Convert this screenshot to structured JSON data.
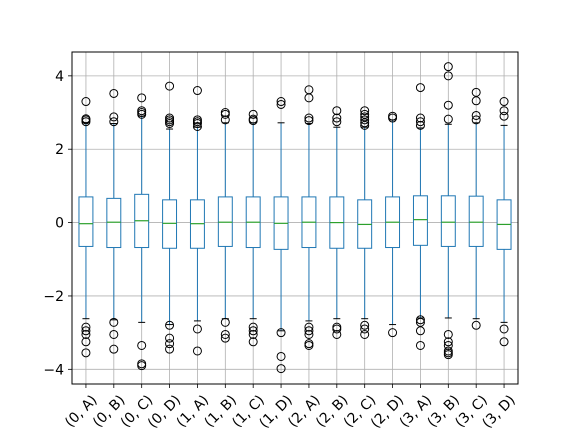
{
  "chart_data": {
    "type": "boxplot",
    "title": "",
    "xlabel": "",
    "ylabel": "",
    "ylim": [
      -4.4,
      4.65
    ],
    "yticks": [
      -4,
      -2,
      0,
      2,
      4
    ],
    "ytick_labels": [
      "−4",
      "−2",
      "0",
      "2",
      "4"
    ],
    "grid": true,
    "colors": {
      "box": "#1f77b4",
      "median": "#2ca02c",
      "grid": "#b0b0b0",
      "flier": "#000000"
    },
    "categories": [
      "(0, A)",
      "(0, B)",
      "(0, C)",
      "(0, D)",
      "(1, A)",
      "(1, B)",
      "(1, C)",
      "(1, D)",
      "(2, A)",
      "(2, B)",
      "(2, C)",
      "(2, D)",
      "(3, A)",
      "(3, B)",
      "(3, C)",
      "(3, D)"
    ],
    "boxes": [
      {
        "q1": -0.65,
        "median": -0.03,
        "q3": 0.7,
        "whisker_low": -2.62,
        "whisker_high": 2.72,
        "fliers": [
          2.75,
          2.8,
          2.83,
          3.3,
          -2.85,
          -2.95,
          -3.05,
          -3.25,
          -3.55
        ]
      },
      {
        "q1": -0.68,
        "median": 0.01,
        "q3": 0.66,
        "whisker_low": -2.65,
        "whisker_high": 2.7,
        "fliers": [
          2.75,
          2.88,
          3.52,
          -2.72,
          -3.05,
          -3.45
        ]
      },
      {
        "q1": -0.68,
        "median": 0.05,
        "q3": 0.77,
        "whisker_low": -2.72,
        "whisker_high": 2.9,
        "fliers": [
          2.95,
          3.0,
          3.05,
          3.4,
          -3.35,
          -3.85,
          -3.9
        ]
      },
      {
        "q1": -0.7,
        "median": -0.02,
        "q3": 0.62,
        "whisker_low": -2.78,
        "whisker_high": 2.55,
        "fliers": [
          2.7,
          2.75,
          2.8,
          2.85,
          3.72,
          -2.8,
          -3.15,
          -3.3,
          -3.45
        ]
      },
      {
        "q1": -0.7,
        "median": -0.03,
        "q3": 0.62,
        "whisker_low": -2.68,
        "whisker_high": 2.6,
        "fliers": [
          2.62,
          2.7,
          2.75,
          2.8,
          3.6,
          -2.9,
          -3.5
        ]
      },
      {
        "q1": -0.65,
        "median": 0.01,
        "q3": 0.7,
        "whisker_low": -2.62,
        "whisker_high": 2.72,
        "fliers": [
          2.8,
          2.95,
          3.0,
          -2.72,
          -3.05,
          -3.15
        ]
      },
      {
        "q1": -0.68,
        "median": 0.01,
        "q3": 0.7,
        "whisker_low": -2.62,
        "whisker_high": 2.72,
        "fliers": [
          2.78,
          2.82,
          2.95,
          -2.85,
          -2.95,
          -3.05,
          -3.25
        ]
      },
      {
        "q1": -0.73,
        "median": -0.02,
        "q3": 0.7,
        "whisker_low": -2.95,
        "whisker_high": 2.72,
        "fliers": [
          3.22,
          3.3,
          -3.0,
          -3.65,
          -3.98
        ]
      },
      {
        "q1": -0.68,
        "median": 0.01,
        "q3": 0.7,
        "whisker_low": -2.68,
        "whisker_high": 2.7,
        "fliers": [
          2.78,
          2.85,
          3.4,
          3.62,
          -2.85,
          -2.95,
          -3.05,
          -3.3,
          -3.35
        ]
      },
      {
        "q1": -0.7,
        "median": 0.0,
        "q3": 0.7,
        "whisker_low": -2.62,
        "whisker_high": 2.6,
        "fliers": [
          2.75,
          2.85,
          3.05,
          -2.85,
          -2.9,
          -3.05
        ]
      },
      {
        "q1": -0.7,
        "median": -0.05,
        "q3": 0.62,
        "whisker_low": -2.62,
        "whisker_high": 2.6,
        "fliers": [
          2.65,
          2.72,
          2.8,
          2.88,
          2.95,
          3.05,
          -2.8,
          -2.9,
          -3.05
        ]
      },
      {
        "q1": -0.68,
        "median": 0.01,
        "q3": 0.7,
        "whisker_low": -2.78,
        "whisker_high": 2.8,
        "fliers": [
          2.85,
          2.9,
          -3.0
        ]
      },
      {
        "q1": -0.62,
        "median": 0.08,
        "q3": 0.73,
        "whisker_low": -2.6,
        "whisker_high": 2.58,
        "fliers": [
          2.65,
          2.75,
          2.85,
          3.68,
          -2.65,
          -2.72,
          -2.95,
          -3.35
        ]
      },
      {
        "q1": -0.65,
        "median": 0.01,
        "q3": 0.73,
        "whisker_low": -2.6,
        "whisker_high": 2.68,
        "fliers": [
          2.82,
          3.2,
          4.0,
          4.25,
          -3.05,
          -3.25,
          -3.35,
          -3.5,
          -3.55,
          -3.6
        ]
      },
      {
        "q1": -0.65,
        "median": 0.01,
        "q3": 0.72,
        "whisker_low": -2.62,
        "whisker_high": 2.72,
        "fliers": [
          2.8,
          2.92,
          3.32,
          3.55,
          -2.8
        ]
      },
      {
        "q1": -0.73,
        "median": -0.05,
        "q3": 0.62,
        "whisker_low": -2.72,
        "whisker_high": 2.65,
        "fliers": [
          2.9,
          3.05,
          3.3,
          -2.9,
          -3.25
        ]
      }
    ]
  }
}
